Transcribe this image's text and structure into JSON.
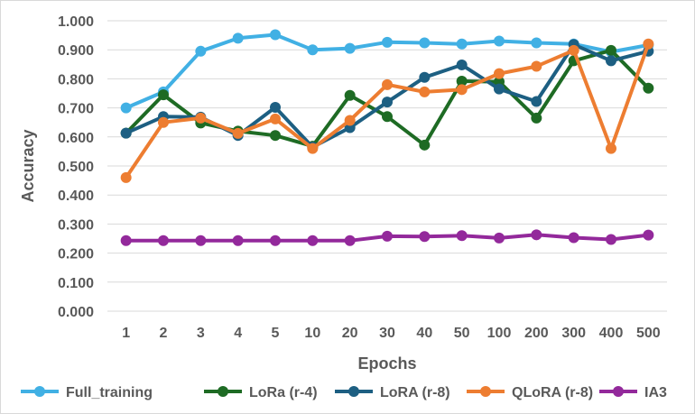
{
  "chart_data": {
    "type": "line",
    "title": "",
    "xlabel": "Epochs",
    "ylabel": "Accuracy",
    "categories": [
      "1",
      "2",
      "3",
      "4",
      "5",
      "10",
      "20",
      "30",
      "40",
      "50",
      "100",
      "200",
      "300",
      "400",
      "500"
    ],
    "ylim": [
      0,
      1
    ],
    "yticks": [
      "0.000",
      "0.100",
      "0.200",
      "0.300",
      "0.400",
      "0.500",
      "0.600",
      "0.700",
      "0.800",
      "0.900",
      "1.000"
    ],
    "grid": true,
    "legend_position": "bottom",
    "series": [
      {
        "name": "Full_training",
        "color": "#41b0e4",
        "values": [
          0.7,
          0.755,
          0.895,
          0.94,
          0.952,
          0.9,
          0.905,
          0.926,
          0.924,
          0.92,
          0.93,
          0.924,
          0.92,
          0.893,
          0.916
        ]
      },
      {
        "name": "LoRa (r-4)",
        "color": "#1e6b24",
        "values": [
          0.613,
          0.745,
          0.648,
          0.62,
          0.605,
          0.568,
          0.743,
          0.67,
          0.572,
          0.792,
          0.79,
          0.665,
          0.862,
          0.898,
          0.768
        ]
      },
      {
        "name": "LoRA (r-8)",
        "color": "#1d5f82",
        "values": [
          0.613,
          0.67,
          0.668,
          0.605,
          0.702,
          0.565,
          0.632,
          0.72,
          0.805,
          0.848,
          0.765,
          0.722,
          0.918,
          0.862,
          0.895
        ]
      },
      {
        "name": "QLoRA (r-8)",
        "color": "#ed7d31",
        "values": [
          0.46,
          0.65,
          0.665,
          0.612,
          0.662,
          0.56,
          0.657,
          0.78,
          0.755,
          0.763,
          0.818,
          0.843,
          0.898,
          0.56,
          0.92
        ]
      },
      {
        "name": "IA3",
        "color": "#93299b",
        "values": [
          0.243,
          0.243,
          0.243,
          0.243,
          0.243,
          0.243,
          0.243,
          0.258,
          0.257,
          0.26,
          0.252,
          0.263,
          0.253,
          0.247,
          0.262
        ]
      }
    ]
  }
}
